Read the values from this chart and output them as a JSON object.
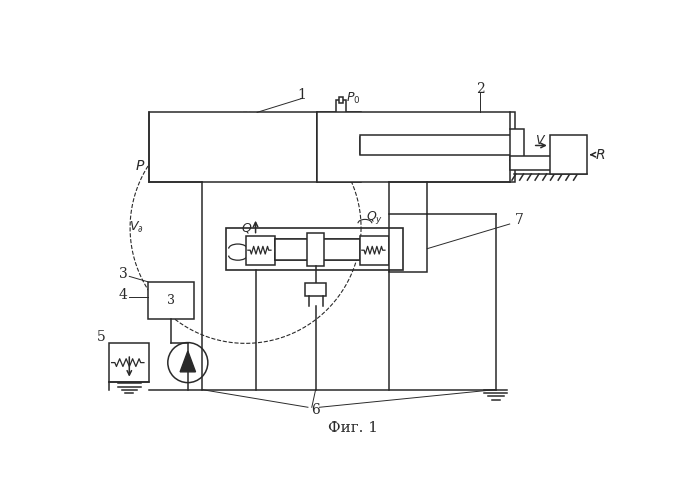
{
  "title": "Фиг. 1",
  "bg_color": "#ffffff",
  "lc": "#2a2a2a",
  "figsize": [
    6.88,
    5.0
  ],
  "dpi": 100
}
